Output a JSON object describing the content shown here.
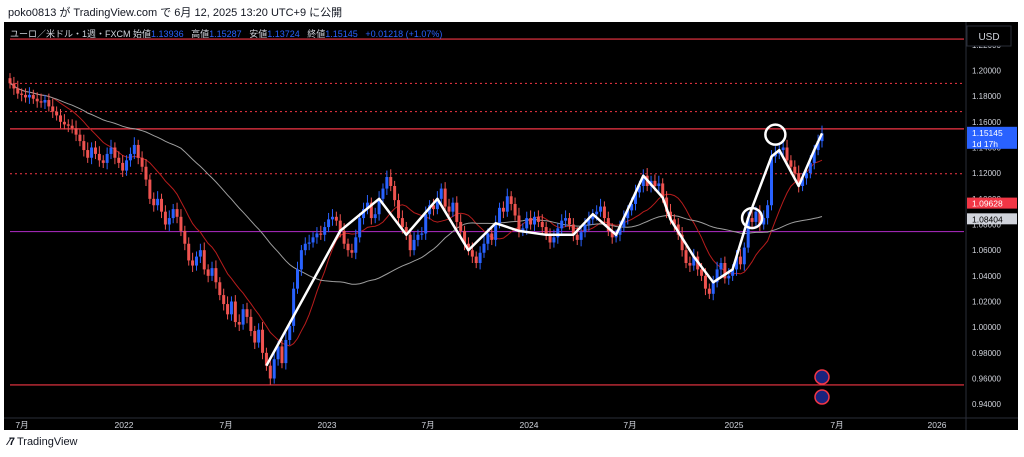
{
  "header": {
    "published": "poko0813 が TradingView.com で 6月 12, 2025 13:20 UTC+9 に公開"
  },
  "legend": {
    "symbol": "ユーロ／米ドル・1週・FXCM",
    "open_label": "始値",
    "open": "1.13936",
    "high_label": "高値",
    "high": "1.15287",
    "low_label": "安値",
    "low": "1.13724",
    "close_label": "終値",
    "close": "1.15145",
    "change": "+0.01218 (+1.07%)"
  },
  "currency_button": "USD",
  "footer": {
    "brand": "TradingView"
  },
  "colors": {
    "background": "#000000",
    "up": "#2962ff",
    "down": "#ef5350",
    "overlay": "#ffffff",
    "level_red": "#f23645",
    "level_blue": "#2962ff",
    "level_purple": "#9c27b0",
    "ma_fast": "#b71c1c",
    "ma_slow": "#9e9e9e"
  },
  "chart_data": {
    "type": "candlestick",
    "symbol": "EURUSD",
    "timeframe": "1W",
    "ylim": [
      0.93,
      1.23
    ],
    "y_ticks": [
      "1.22000",
      "1.20000",
      "1.18000",
      "1.16000",
      "1.14000",
      "1.12000",
      "1.10000",
      "1.08000",
      "1.06000",
      "1.04000",
      "1.02000",
      "1.00000",
      "0.98000",
      "0.96000",
      "0.94000"
    ],
    "x_ticks": [
      "7月",
      "2022",
      "7月",
      "2023",
      "7月",
      "2024",
      "7月",
      "2025",
      "7月",
      "2026"
    ],
    "price_labels": [
      {
        "text": "1.15145",
        "sub": "1d 17h",
        "value": 1.15145,
        "color": "#2962ff"
      },
      {
        "text": "1.09628",
        "value": 1.09628,
        "color": "#f23645"
      },
      {
        "text": "1.08404",
        "value": 1.08404,
        "color": "#d1d4dc"
      }
    ],
    "horizontal_levels": [
      {
        "value": 1.2245,
        "color": "#f23645",
        "style": "solid"
      },
      {
        "value": 1.19,
        "color": "#f23645",
        "style": "dotted"
      },
      {
        "value": 1.168,
        "color": "#f23645",
        "style": "dotted"
      },
      {
        "value": 1.1545,
        "color": "#f23645",
        "style": "solid"
      },
      {
        "value": 1.1195,
        "color": "#f23645",
        "style": "dotted"
      },
      {
        "value": 1.0745,
        "color": "#9c27b0",
        "style": "solid"
      },
      {
        "value": 0.955,
        "color": "#f23645",
        "style": "solid"
      }
    ],
    "series": [
      {
        "name": "EUR/USD weekly close",
        "values": [
          1.19,
          1.186,
          1.182,
          1.181,
          1.179,
          1.181,
          1.178,
          1.176,
          1.175,
          1.177,
          1.172,
          1.168,
          1.165,
          1.16,
          1.158,
          1.157,
          1.155,
          1.15,
          1.145,
          1.138,
          1.132,
          1.14,
          1.135,
          1.13,
          1.128,
          1.135,
          1.14,
          1.132,
          1.128,
          1.122,
          1.13,
          1.135,
          1.142,
          1.132,
          1.125,
          1.115,
          1.1,
          1.095,
          1.1,
          1.09,
          1.08,
          1.085,
          1.092,
          1.086,
          1.075,
          1.065,
          1.052,
          1.048,
          1.055,
          1.06,
          1.045,
          1.04,
          1.046,
          1.035,
          1.025,
          1.018,
          1.01,
          1.02,
          1.004,
          1.002,
          1.014,
          1.008,
          0.997,
          0.988,
          0.998,
          0.98,
          0.97,
          0.96,
          0.975,
          0.985,
          0.972,
          0.99,
          1.001,
          1.03,
          1.045,
          1.06,
          1.065,
          1.066,
          1.07,
          1.073,
          1.072,
          1.078,
          1.084,
          1.086,
          1.083,
          1.075,
          1.065,
          1.06,
          1.058,
          1.07,
          1.085,
          1.092,
          1.097,
          1.085,
          1.088,
          1.1,
          1.108,
          1.117,
          1.11,
          1.099,
          1.085,
          1.078,
          1.072,
          1.06,
          1.068,
          1.072,
          1.073,
          1.088,
          1.095,
          1.092,
          1.1,
          1.108,
          1.094,
          1.09,
          1.097,
          1.082,
          1.075,
          1.065,
          1.06,
          1.055,
          1.05,
          1.058,
          1.065,
          1.073,
          1.068,
          1.081,
          1.093,
          1.09,
          1.102,
          1.096,
          1.087,
          1.075,
          1.077,
          1.085,
          1.08,
          1.086,
          1.082,
          1.078,
          1.072,
          1.066,
          1.07,
          1.077,
          1.083,
          1.085,
          1.08,
          1.072,
          1.068,
          1.074,
          1.08,
          1.084,
          1.088,
          1.09,
          1.094,
          1.085,
          1.075,
          1.07,
          1.072,
          1.078,
          1.085,
          1.091,
          1.096,
          1.105,
          1.11,
          1.118,
          1.11,
          1.114,
          1.11,
          1.112,
          1.101,
          1.09,
          1.084,
          1.08,
          1.072,
          1.06,
          1.05,
          1.048,
          1.055,
          1.045,
          1.04,
          1.03,
          1.026,
          1.035,
          1.045,
          1.05,
          1.038,
          1.04,
          1.045,
          1.055,
          1.049,
          1.062,
          1.085,
          1.082,
          1.09,
          1.08,
          1.085,
          1.095,
          1.133,
          1.135,
          1.138,
          1.14,
          1.13,
          1.125,
          1.12,
          1.11,
          1.116,
          1.12,
          1.128,
          1.138,
          1.145,
          1.151
        ]
      }
    ],
    "markers": [
      {
        "type": "flag",
        "label": "🇪🇺"
      },
      {
        "type": "flag",
        "label": "🇺🇸"
      }
    ]
  }
}
